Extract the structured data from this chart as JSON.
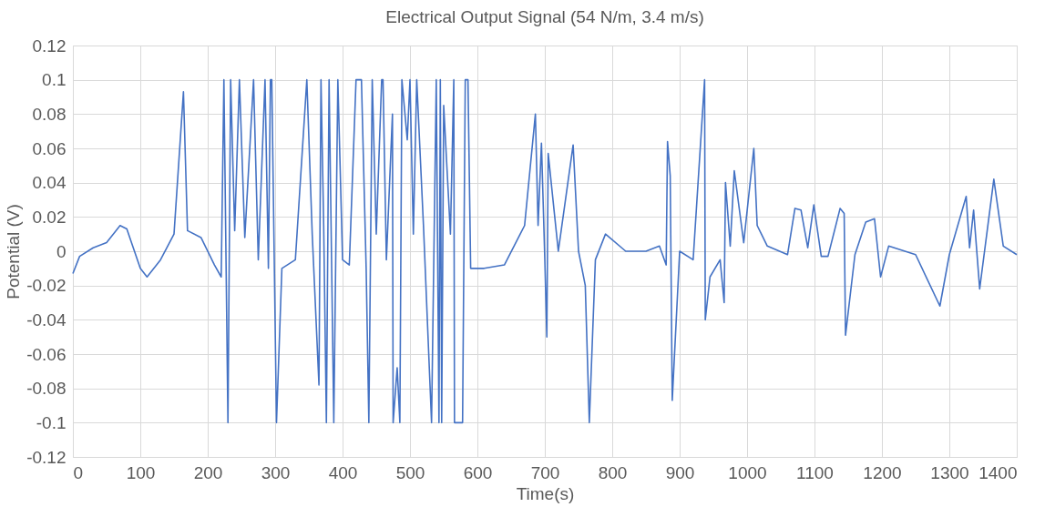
{
  "chart_data": {
    "type": "line",
    "title": "Electrical Output Signal (54 N/m, 3.4 m/s)",
    "xlabel": "Time(s)",
    "ylabel": "Potential (V)",
    "x": [
      0,
      10,
      30,
      50,
      70,
      80,
      100,
      110,
      130,
      150,
      164,
      170,
      190,
      210,
      220,
      224,
      230,
      234,
      240,
      247,
      255,
      268,
      275,
      285,
      290,
      293,
      295,
      302,
      310,
      330,
      347,
      355,
      365,
      368,
      372,
      376,
      380,
      387,
      393,
      400,
      410,
      420,
      428,
      435,
      439,
      444,
      450,
      458,
      460,
      465,
      474,
      475,
      481,
      485,
      488,
      496,
      500,
      505,
      510,
      520,
      532,
      539,
      543,
      545,
      547,
      550,
      560,
      565,
      566,
      575,
      578,
      582,
      586,
      590,
      610,
      640,
      670,
      686,
      690,
      695,
      700,
      703,
      705,
      720,
      742,
      750,
      760,
      766,
      775,
      790,
      820,
      850,
      870,
      880,
      882,
      886,
      889,
      900,
      920,
      937,
      938,
      945,
      960,
      966,
      968,
      975,
      981,
      995,
      1010,
      1015,
      1030,
      1060,
      1071,
      1080,
      1090,
      1099,
      1110,
      1120,
      1138,
      1144,
      1146,
      1160,
      1176,
      1189,
      1198,
      1210,
      1250,
      1286,
      1300,
      1325,
      1330,
      1336,
      1345,
      1366,
      1380,
      1400
    ],
    "series": [
      {
        "color": "#4472c4",
        "values": [
          -0.013,
          -0.003,
          0.002,
          0.005,
          0.015,
          0.013,
          -0.01,
          -0.015,
          -0.005,
          0.01,
          0.093,
          0.012,
          0.008,
          -0.008,
          -0.015,
          0.1,
          -0.1,
          0.1,
          0.012,
          0.1,
          0.008,
          0.1,
          -0.005,
          0.1,
          -0.01,
          0.1,
          0.1,
          -0.1,
          -0.01,
          -0.005,
          0.1,
          0.01,
          -0.078,
          0.1,
          0.015,
          -0.1,
          0.1,
          -0.1,
          0.1,
          -0.005,
          -0.008,
          0.1,
          0.1,
          -0.01,
          -0.1,
          0.1,
          0.01,
          0.1,
          0.1,
          -0.005,
          0.08,
          -0.1,
          -0.068,
          -0.1,
          0.1,
          0.065,
          0.1,
          0.01,
          0.1,
          0.015,
          -0.1,
          0.1,
          -0.1,
          0.1,
          -0.1,
          0.085,
          0.01,
          0.1,
          -0.1,
          -0.1,
          -0.1,
          0.1,
          0.1,
          -0.01,
          -0.01,
          -0.008,
          0.015,
          0.08,
          0.015,
          0.063,
          -0.005,
          -0.05,
          0.057,
          0,
          0.062,
          0,
          -0.02,
          -0.1,
          -0.005,
          0.01,
          0,
          0,
          0.003,
          -0.008,
          0.064,
          0.044,
          -0.087,
          0,
          -0.005,
          0.1,
          -0.04,
          -0.015,
          -0.005,
          -0.03,
          0.04,
          0.003,
          0.047,
          0.005,
          0.06,
          0.015,
          0.003,
          -0.002,
          0.025,
          0.024,
          0.002,
          0.027,
          -0.003,
          -0.003,
          0.025,
          0.022,
          -0.049,
          -0.002,
          0.017,
          0.019,
          -0.015,
          0.003,
          -0.002,
          -0.032,
          -0.002,
          0.032,
          0.002,
          0.024,
          -0.022,
          0.042,
          0.003,
          -0.002
        ]
      }
    ],
    "xlim": [
      0,
      1400
    ],
    "xticks": [
      0,
      100,
      200,
      300,
      400,
      500,
      600,
      700,
      800,
      900,
      1000,
      1100,
      1200,
      1300,
      1400
    ],
    "ylim": [
      -0.12,
      0.12
    ],
    "yticks": [
      -0.12,
      -0.1,
      -0.08,
      -0.06,
      -0.04,
      -0.02,
      0,
      0.02,
      0.04,
      0.06,
      0.08,
      0.1,
      0.12
    ],
    "grid": true,
    "marker": "none",
    "line_style": "solid"
  }
}
